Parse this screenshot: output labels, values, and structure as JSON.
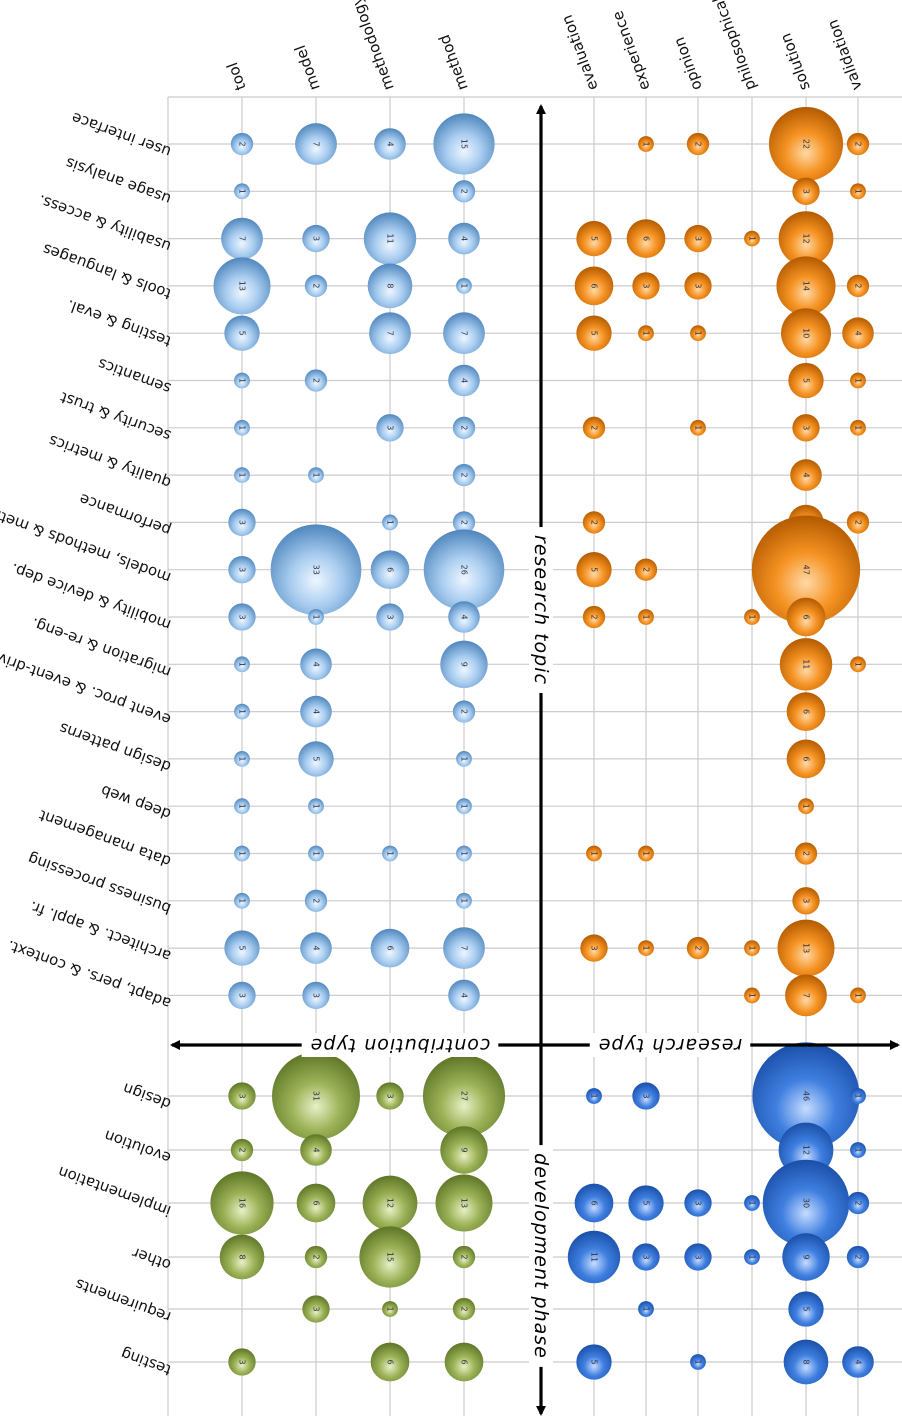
{
  "chart_data": {
    "type": "bubble-matrix",
    "orientation": "rotated-180",
    "axis_titles": {
      "research_topic": "research topic",
      "development_phase": "development phase",
      "contribution_type": "contribution type",
      "research_type": "research type"
    },
    "contribution_types": [
      "tool",
      "model",
      "methodology",
      "method"
    ],
    "research_types": [
      "evaluation",
      "experience",
      "opinion",
      "philosophical",
      "solution",
      "validation"
    ],
    "research_topics": [
      "user interface",
      "usage analysis",
      "usability & access.",
      "tools & languages",
      "testing & eval.",
      "semantics",
      "security & trust",
      "quality & metrics",
      "performance",
      "models, methods & methodologies",
      "mobility & device dep.",
      "migration & re-eng.",
      "event proc. & event-driven syst",
      "design patterns",
      "deep web",
      "data management",
      "business processing",
      "architect. & appl. fr.",
      "adapt, pers. & context."
    ],
    "development_phases": [
      "design",
      "evolution",
      "implementation",
      "other",
      "requirements",
      "testing"
    ],
    "topic_by_contribution": [
      [
        2,
        7,
        4,
        15
      ],
      [
        1,
        null,
        null,
        2
      ],
      [
        7,
        3,
        11,
        4
      ],
      [
        13,
        2,
        8,
        1
      ],
      [
        5,
        null,
        7,
        7
      ],
      [
        1,
        2,
        null,
        4
      ],
      [
        1,
        null,
        3,
        2
      ],
      [
        1,
        1,
        null,
        2
      ],
      [
        3,
        null,
        1,
        2
      ],
      [
        3,
        33,
        6,
        26
      ],
      [
        3,
        1,
        3,
        4
      ],
      [
        1,
        4,
        null,
        9
      ],
      [
        1,
        4,
        null,
        2
      ],
      [
        1,
        5,
        null,
        1
      ],
      [
        1,
        1,
        null,
        1
      ],
      [
        1,
        1,
        1,
        1
      ],
      [
        1,
        2,
        null,
        1
      ],
      [
        5,
        4,
        6,
        7
      ],
      [
        3,
        3,
        null,
        4
      ]
    ],
    "topic_by_research": [
      [
        null,
        1,
        2,
        null,
        22,
        2
      ],
      [
        null,
        null,
        null,
        null,
        3,
        1
      ],
      [
        5,
        6,
        3,
        1,
        12,
        null
      ],
      [
        6,
        3,
        3,
        null,
        14,
        2
      ],
      [
        5,
        1,
        1,
        null,
        10,
        4
      ],
      [
        null,
        null,
        null,
        null,
        5,
        1
      ],
      [
        2,
        null,
        1,
        null,
        3,
        1
      ],
      [
        null,
        null,
        null,
        null,
        4,
        null
      ],
      [
        2,
        null,
        null,
        null,
        5,
        2
      ],
      [
        5,
        2,
        null,
        null,
        47,
        null
      ],
      [
        2,
        1,
        null,
        1,
        6,
        null
      ],
      [
        null,
        null,
        null,
        null,
        11,
        1
      ],
      [
        null,
        null,
        null,
        null,
        6,
        null
      ],
      [
        null,
        null,
        null,
        null,
        6,
        null
      ],
      [
        null,
        null,
        null,
        null,
        1,
        null
      ],
      [
        1,
        1,
        null,
        null,
        2,
        null
      ],
      [
        null,
        null,
        null,
        null,
        3,
        null
      ],
      [
        3,
        1,
        2,
        1,
        13,
        null
      ],
      [
        null,
        null,
        null,
        1,
        7,
        1
      ]
    ],
    "phase_by_contribution": [
      [
        3,
        31,
        3,
        27
      ],
      [
        2,
        4,
        null,
        9
      ],
      [
        16,
        6,
        12,
        13
      ],
      [
        8,
        2,
        15,
        2
      ],
      [
        null,
        3,
        1,
        2
      ],
      [
        3,
        null,
        6,
        6
      ]
    ],
    "phase_by_research": [
      [
        1,
        3,
        null,
        null,
        46,
        1
      ],
      [
        null,
        null,
        null,
        null,
        12,
        1
      ],
      [
        6,
        5,
        3,
        1,
        30,
        2
      ],
      [
        11,
        3,
        3,
        1,
        9,
        2
      ],
      [
        null,
        1,
        null,
        null,
        5,
        null
      ],
      [
        5,
        null,
        1,
        null,
        8,
        4
      ]
    ],
    "colors": {
      "topic_contribution": "#8fbce8",
      "topic_research": "#f08a1c",
      "phase_contribution": "#93a84e",
      "phase_research": "#3f7fe0",
      "grid": "#cccccc",
      "arrows": "#000000"
    },
    "grid": true
  }
}
